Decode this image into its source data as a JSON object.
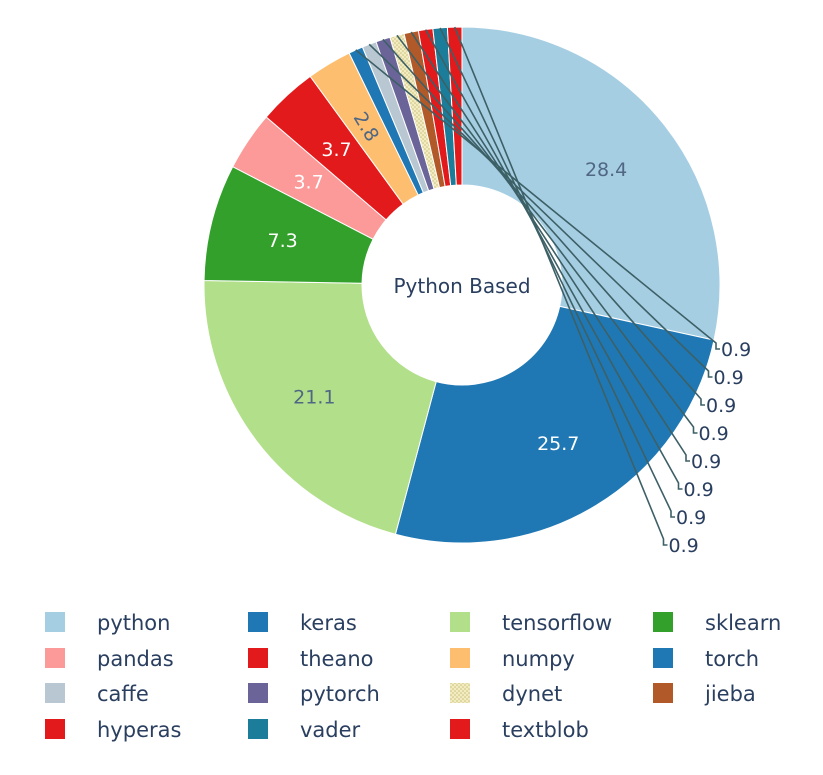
{
  "chart_data": {
    "type": "pie",
    "hole": true,
    "center_text": "Python Based",
    "slices": [
      {
        "label": "python",
        "value": 28.4,
        "display": "28.4",
        "color": "#a6cee3"
      },
      {
        "label": "keras",
        "value": 25.7,
        "display": "25.7",
        "color": "#1f78b4"
      },
      {
        "label": "tensorflow",
        "value": 21.1,
        "display": "21.1",
        "color": "#b2df8a"
      },
      {
        "label": "sklearn",
        "value": 7.3,
        "display": "7.3",
        "color": "#33a02c"
      },
      {
        "label": "pandas",
        "value": 3.7,
        "display": "3.7",
        "color": "#fb9a99"
      },
      {
        "label": "theano",
        "value": 3.7,
        "display": "3.7",
        "color": "#e31a1c"
      },
      {
        "label": "numpy",
        "value": 2.8,
        "display": "2.8",
        "color": "#fdbf6f"
      },
      {
        "label": "torch",
        "value": 0.9,
        "display": "0.9",
        "color": "#1f78b4"
      },
      {
        "label": "caffe",
        "value": 0.9,
        "display": "0.9",
        "color": "#b9c7d3"
      },
      {
        "label": "pytorch",
        "value": 0.9,
        "display": "0.9",
        "color": "#6a6499"
      },
      {
        "label": "dynet",
        "value": 0.9,
        "display": "0.9",
        "color": "#ddd9a3"
      },
      {
        "label": "jieba",
        "value": 0.9,
        "display": "0.9",
        "color": "#b15928"
      },
      {
        "label": "hyperas",
        "value": 0.9,
        "display": "0.9",
        "color": "#e31a1c"
      },
      {
        "label": "vader",
        "value": 0.9,
        "display": "0.9",
        "color": "#1b7d99"
      },
      {
        "label": "textblob",
        "value": 0.9,
        "display": "0.9",
        "color": "#e31a1c"
      }
    ],
    "legend_order": [
      "python",
      "keras",
      "tensorflow",
      "sklearn",
      "pandas",
      "theano",
      "numpy",
      "torch",
      "caffe",
      "pytorch",
      "dynet",
      "jieba",
      "hyperas",
      "vader",
      "textblob"
    ],
    "legend_placement": "bottom"
  }
}
